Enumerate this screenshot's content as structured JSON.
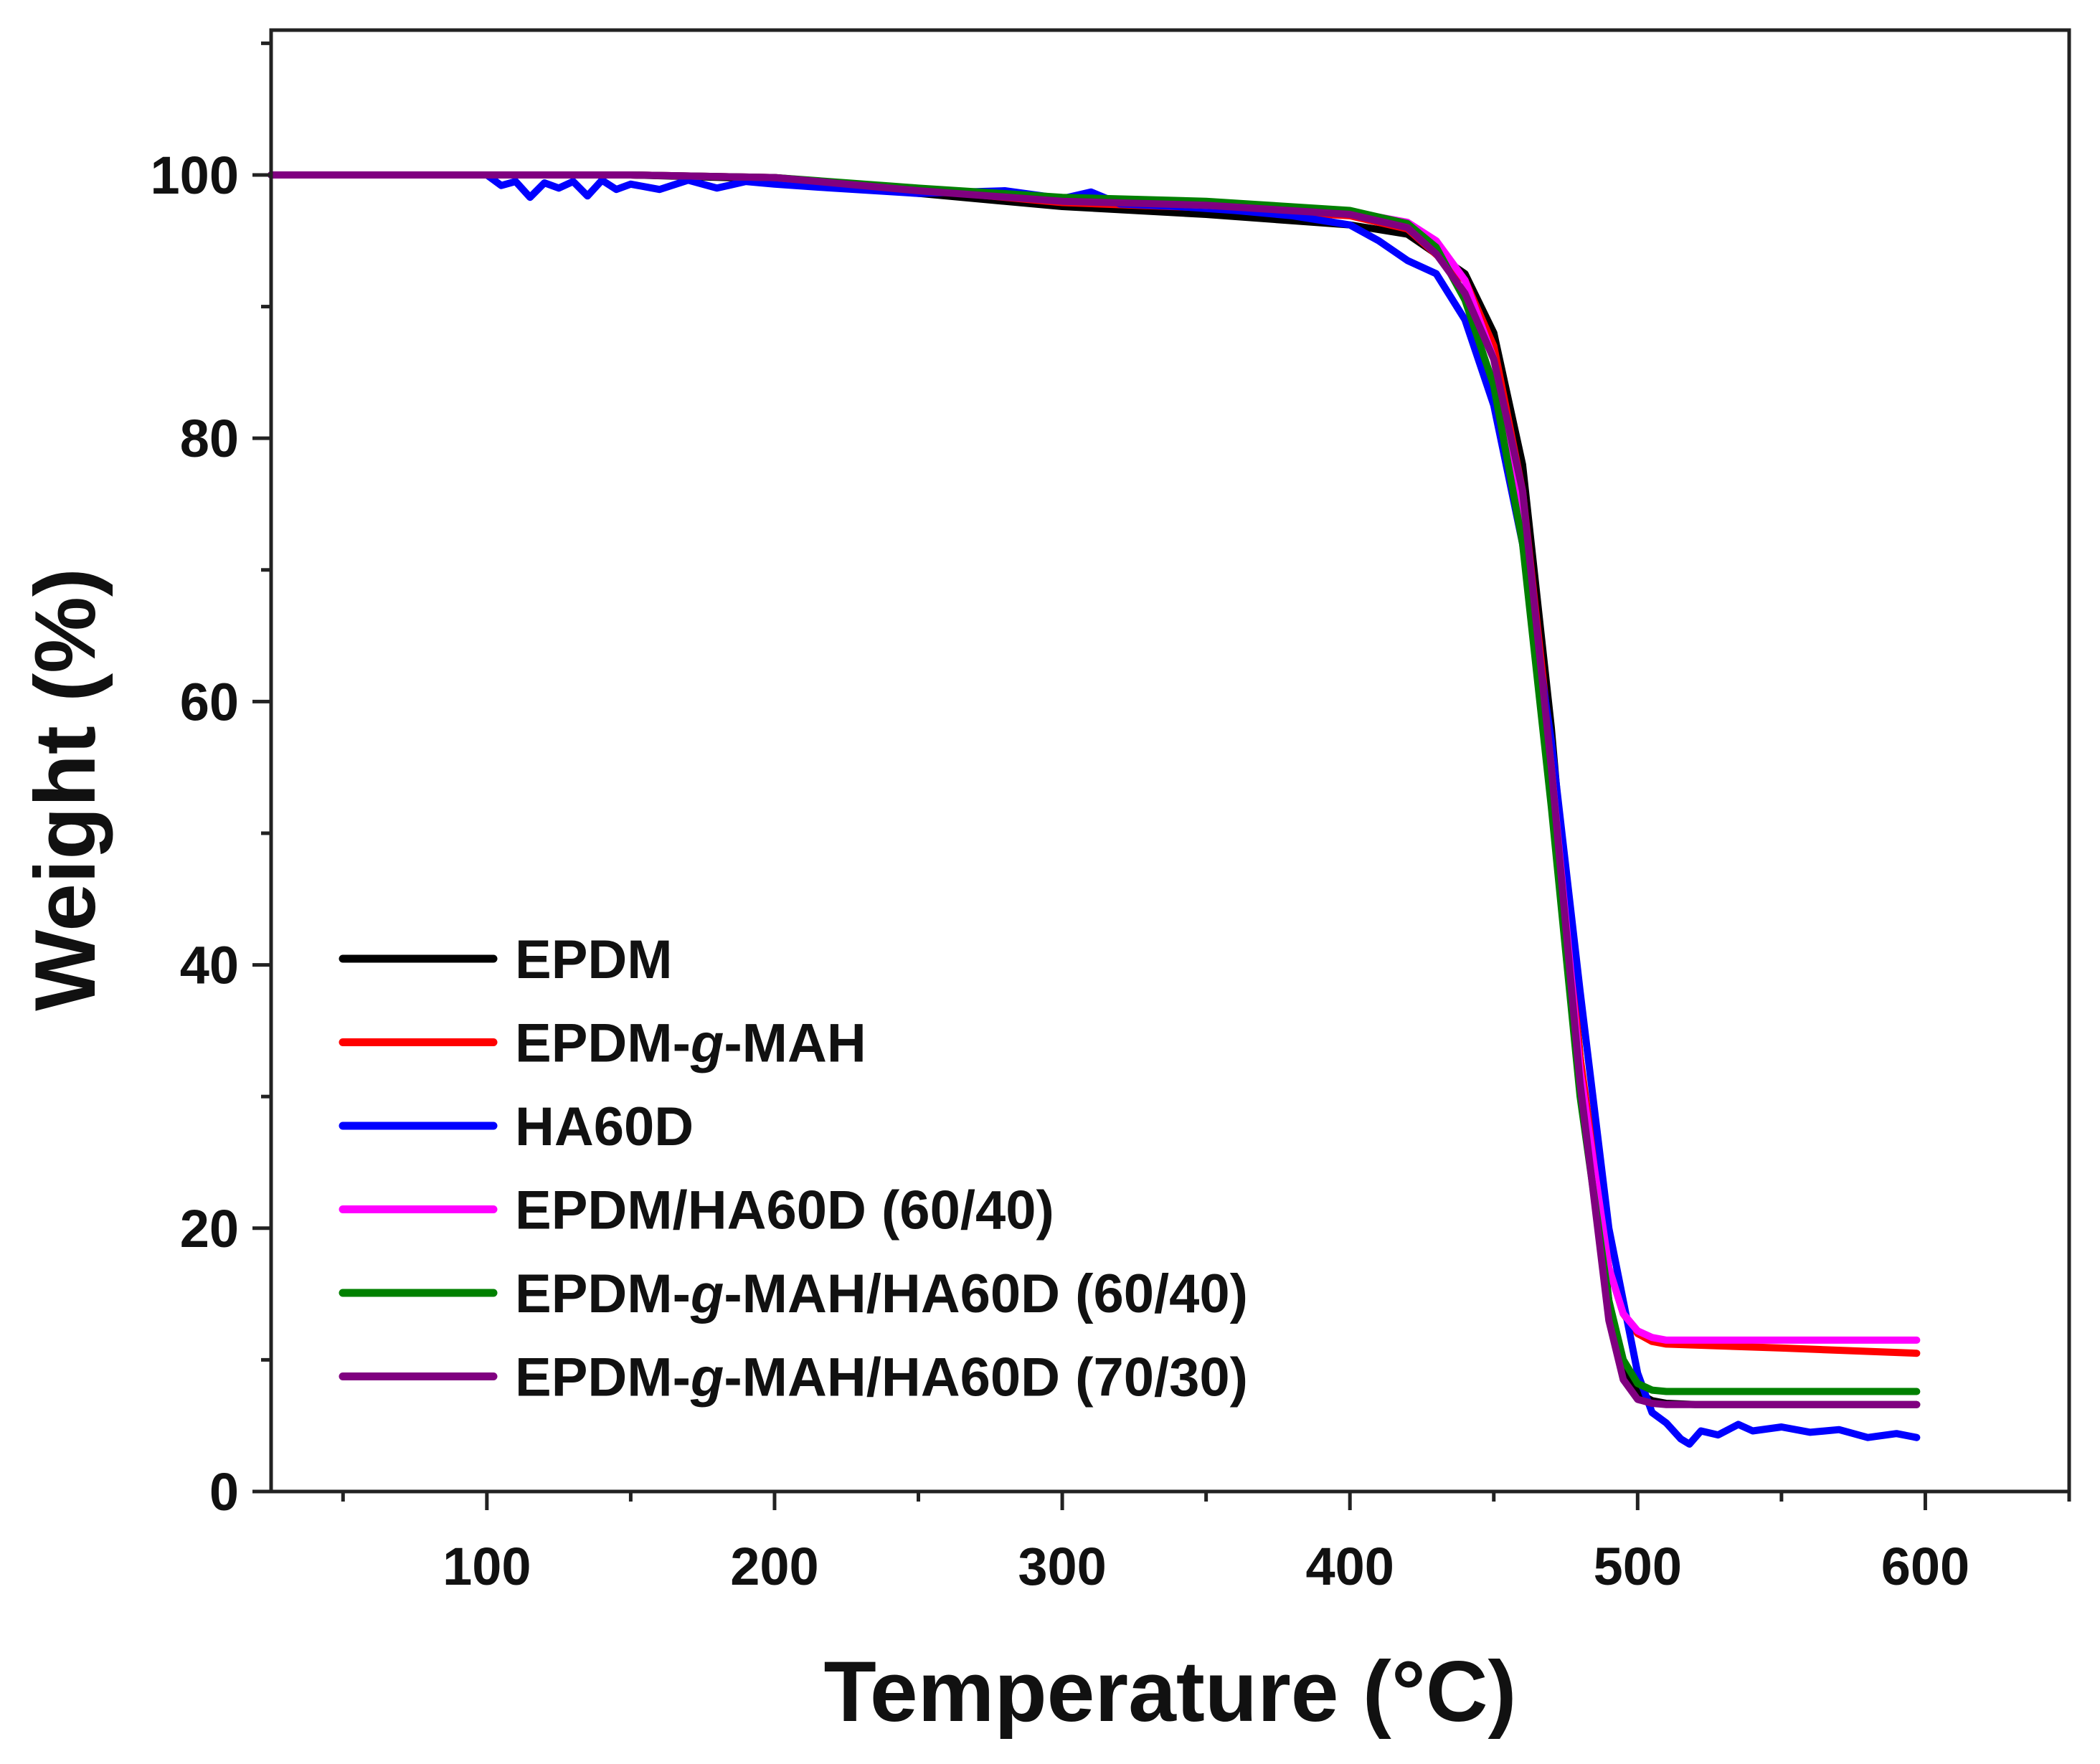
{
  "chart_data": {
    "type": "line",
    "title": "",
    "xlabel": "Temperature (°C)",
    "ylabel": "Weight (%)",
    "xlim": [
      25,
      650
    ],
    "ylim": [
      0,
      111
    ],
    "xticks": [
      100,
      200,
      300,
      400,
      500,
      600
    ],
    "yticks": [
      0,
      20,
      40,
      60,
      80,
      100
    ],
    "grid": false,
    "legend_position": "bottom-left",
    "series": [
      {
        "name": "EPDM",
        "legend_parts": [
          {
            "text": "EPDM",
            "italic": false
          }
        ],
        "color": "#000000",
        "x": [
          25,
          100,
          150,
          200,
          250,
          300,
          350,
          400,
          420,
          440,
          450,
          460,
          470,
          480,
          490,
          495,
          500,
          505,
          510,
          520,
          550,
          597
        ],
        "y": [
          100,
          100,
          100,
          99.7,
          98.6,
          97.6,
          97.0,
          96.2,
          95.5,
          92.5,
          88.0,
          78.0,
          58.0,
          33.0,
          14.5,
          9.5,
          7.5,
          6.9,
          6.7,
          6.6,
          6.6,
          6.6
        ]
      },
      {
        "name": "EPDM-g-MAH",
        "legend_parts": [
          {
            "text": "EPDM-",
            "italic": false
          },
          {
            "text": "g",
            "italic": true
          },
          {
            "text": "-MAH",
            "italic": false
          }
        ],
        "color": "#ff0000",
        "x": [
          25,
          100,
          150,
          200,
          250,
          300,
          350,
          400,
          420,
          440,
          450,
          460,
          470,
          480,
          490,
          495,
          500,
          505,
          510,
          550,
          597
        ],
        "y": [
          100,
          100,
          100,
          99.8,
          98.9,
          97.9,
          97.5,
          96.9,
          95.9,
          92.0,
          87.0,
          76.0,
          56.0,
          33.0,
          17.0,
          13.5,
          12.0,
          11.4,
          11.2,
          10.9,
          10.5
        ]
      },
      {
        "name": "HA60D",
        "legend_parts": [
          {
            "text": "HA60D",
            "italic": false
          }
        ],
        "color": "#0000ff",
        "x": [
          25,
          100,
          105,
          110,
          115,
          120,
          125,
          130,
          135,
          140,
          145,
          150,
          160,
          170,
          180,
          190,
          200,
          220,
          250,
          280,
          300,
          310,
          320,
          340,
          360,
          380,
          400,
          410,
          420,
          430,
          440,
          450,
          460,
          470,
          480,
          490,
          500,
          505,
          510,
          515,
          518,
          522,
          528,
          535,
          540,
          550,
          560,
          570,
          580,
          590,
          597
        ],
        "y": [
          100,
          100,
          99.2,
          99.5,
          98.3,
          99.4,
          99.0,
          99.5,
          98.4,
          99.6,
          98.9,
          99.3,
          98.9,
          99.6,
          99.0,
          99.5,
          99.3,
          99.0,
          98.6,
          98.8,
          98.2,
          98.7,
          97.8,
          97.6,
          97.3,
          96.9,
          96.2,
          95.0,
          93.5,
          92.5,
          89.0,
          82.5,
          72.0,
          57.0,
          38.0,
          20.0,
          9.0,
          6.0,
          5.2,
          4.0,
          3.6,
          4.6,
          4.3,
          5.1,
          4.6,
          4.9,
          4.5,
          4.7,
          4.1,
          4.4,
          4.1
        ]
      },
      {
        "name": "EPDM/HA60D (60/40)",
        "legend_parts": [
          {
            "text": "EPDM/HA60D (60/40)",
            "italic": false
          }
        ],
        "color": "#ff00ff",
        "x": [
          25,
          100,
          150,
          200,
          250,
          300,
          350,
          400,
          420,
          430,
          440,
          450,
          460,
          470,
          480,
          490,
          495,
          500,
          505,
          510,
          550,
          597
        ],
        "y": [
          100,
          100,
          100,
          99.8,
          98.9,
          98.1,
          97.7,
          97.2,
          96.4,
          95.0,
          92.0,
          86.0,
          75.0,
          55.0,
          32.0,
          17.0,
          13.5,
          12.2,
          11.7,
          11.5,
          11.5,
          11.5
        ]
      },
      {
        "name": "EPDM-g-MAH/HA60D (60/40)",
        "legend_parts": [
          {
            "text": "EPDM-",
            "italic": false
          },
          {
            "text": "g",
            "italic": true
          },
          {
            "text": "-MAH/HA60D (60/40)",
            "italic": false
          }
        ],
        "color": "#008000",
        "x": [
          25,
          100,
          150,
          200,
          250,
          300,
          350,
          400,
          420,
          430,
          440,
          450,
          460,
          470,
          480,
          490,
          495,
          500,
          505,
          510,
          550,
          597
        ],
        "y": [
          100,
          100,
          100,
          99.8,
          99.0,
          98.3,
          98.0,
          97.3,
          96.3,
          94.5,
          90.5,
          84.0,
          72.0,
          52.0,
          30.0,
          14.5,
          10.0,
          8.2,
          7.7,
          7.6,
          7.6,
          7.6
        ]
      },
      {
        "name": "EPDM-g-MAH/HA60D (70/30)",
        "legend_parts": [
          {
            "text": "EPDM-",
            "italic": false
          },
          {
            "text": "g",
            "italic": true
          },
          {
            "text": "-MAH/HA60D (70/30)",
            "italic": false
          }
        ],
        "color": "#800080",
        "x": [
          25,
          100,
          150,
          200,
          250,
          300,
          350,
          400,
          420,
          430,
          440,
          450,
          460,
          470,
          480,
          490,
          495,
          500,
          505,
          510,
          550,
          597
        ],
        "y": [
          100,
          100,
          100,
          99.8,
          98.8,
          98.0,
          97.7,
          97.0,
          96.0,
          94.0,
          91.0,
          86.0,
          76.0,
          55.0,
          31.0,
          13.0,
          8.5,
          7.0,
          6.7,
          6.6,
          6.6,
          6.6
        ]
      }
    ]
  }
}
